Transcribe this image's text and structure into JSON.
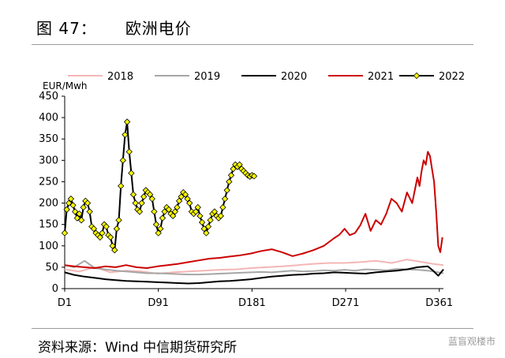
{
  "header": {
    "figure_number": "图 47：",
    "title": "欧洲电价"
  },
  "footer": {
    "source": "资料来源：Wind  中信期货研究所",
    "watermark": "蓝盲观楼市"
  },
  "chart_data": {
    "type": "line",
    "title": "欧洲电价",
    "ylabel": "EUR/Mwh",
    "xlabel": "",
    "ylim": [
      0,
      450
    ],
    "yticks": [
      0,
      50,
      100,
      150,
      200,
      250,
      300,
      350,
      400,
      450
    ],
    "xlim": [
      1,
      365
    ],
    "xticks": [
      {
        "value": 1,
        "label": "D1"
      },
      {
        "value": 91,
        "label": "D91"
      },
      {
        "value": 181,
        "label": "D181"
      },
      {
        "value": 271,
        "label": "D271"
      },
      {
        "value": 361,
        "label": "D361"
      }
    ],
    "legend_position": "top",
    "series": [
      {
        "name": "2018",
        "color": "#f4b6b6",
        "markers": false,
        "x": [
          1,
          15,
          30,
          45,
          60,
          75,
          90,
          105,
          120,
          135,
          150,
          165,
          180,
          195,
          210,
          225,
          240,
          255,
          270,
          285,
          300,
          315,
          330,
          345,
          355,
          365
        ],
        "y": [
          45,
          40,
          50,
          38,
          42,
          40,
          35,
          38,
          40,
          42,
          44,
          45,
          48,
          50,
          52,
          55,
          58,
          60,
          60,
          62,
          65,
          60,
          68,
          62,
          58,
          55
        ]
      },
      {
        "name": "2019",
        "color": "#a6a6a6",
        "markers": false,
        "x": [
          1,
          10,
          20,
          30,
          40,
          50,
          60,
          70,
          80,
          90,
          100,
          110,
          120,
          130,
          140,
          150,
          160,
          170,
          180,
          190,
          200,
          210,
          220,
          230,
          240,
          250,
          260,
          270,
          280,
          290,
          300,
          310,
          320,
          330,
          340,
          350,
          360,
          365
        ],
        "y": [
          55,
          50,
          65,
          48,
          45,
          42,
          40,
          38,
          36,
          36,
          35,
          34,
          33,
          33,
          34,
          35,
          36,
          37,
          38,
          39,
          38,
          40,
          42,
          40,
          41,
          43,
          42,
          44,
          42,
          45,
          44,
          43,
          46,
          45,
          44,
          42,
          38,
          36
        ]
      },
      {
        "name": "2020",
        "color": "#000000",
        "markers": false,
        "x": [
          1,
          10,
          20,
          30,
          40,
          50,
          60,
          70,
          80,
          90,
          100,
          110,
          120,
          130,
          140,
          150,
          160,
          170,
          180,
          190,
          200,
          210,
          220,
          230,
          240,
          250,
          260,
          270,
          280,
          290,
          300,
          310,
          320,
          330,
          340,
          350,
          355,
          360,
          365
        ],
        "y": [
          38,
          32,
          28,
          25,
          22,
          20,
          18,
          17,
          16,
          15,
          14,
          13,
          12,
          13,
          15,
          17,
          18,
          20,
          22,
          25,
          28,
          30,
          32,
          33,
          35,
          36,
          38,
          37,
          36,
          35,
          38,
          40,
          42,
          45,
          50,
          52,
          42,
          30,
          45
        ]
      },
      {
        "name": "2021",
        "color": "#cc0000",
        "markers": false,
        "x": [
          1,
          10,
          20,
          30,
          40,
          50,
          60,
          70,
          80,
          90,
          100,
          110,
          120,
          130,
          140,
          150,
          160,
          170,
          180,
          190,
          200,
          210,
          220,
          230,
          240,
          250,
          260,
          265,
          270,
          275,
          280,
          285,
          290,
          295,
          300,
          305,
          310,
          315,
          320,
          325,
          330,
          335,
          340,
          342,
          344,
          346,
          348,
          350,
          352,
          354,
          356,
          358,
          360,
          362,
          364
        ],
        "y": [
          55,
          52,
          50,
          48,
          52,
          50,
          55,
          50,
          48,
          52,
          55,
          58,
          62,
          66,
          70,
          72,
          75,
          78,
          82,
          88,
          92,
          85,
          76,
          82,
          90,
          100,
          118,
          126,
          140,
          125,
          130,
          148,
          175,
          135,
          160,
          150,
          175,
          210,
          200,
          180,
          225,
          200,
          260,
          240,
          275,
          300,
          290,
          320,
          310,
          280,
          250,
          180,
          100,
          85,
          120
        ]
      },
      {
        "name": "2022",
        "color": "#000000",
        "marker_color": "#ffff00",
        "markers": true,
        "x": [
          1,
          3,
          5,
          7,
          9,
          11,
          13,
          15,
          17,
          19,
          21,
          23,
          25,
          27,
          29,
          31,
          33,
          35,
          37,
          39,
          41,
          43,
          45,
          47,
          49,
          51,
          53,
          55,
          57,
          59,
          61,
          63,
          65,
          67,
          69,
          71,
          73,
          75,
          77,
          79,
          81,
          83,
          85,
          87,
          89,
          91,
          93,
          95,
          97,
          99,
          101,
          103,
          105,
          107,
          109,
          111,
          113,
          115,
          117,
          119,
          121,
          123,
          125,
          127,
          129,
          131,
          133,
          135,
          137,
          139,
          141,
          143,
          145,
          147,
          149,
          151,
          153,
          155,
          157,
          159,
          161,
          163,
          165,
          167,
          169,
          171,
          173,
          175,
          177,
          179,
          181,
          183
        ],
        "y": [
          130,
          185,
          200,
          210,
          195,
          180,
          165,
          175,
          160,
          190,
          205,
          200,
          180,
          145,
          140,
          130,
          125,
          120,
          130,
          150,
          145,
          125,
          120,
          100,
          90,
          140,
          160,
          240,
          300,
          360,
          390,
          320,
          270,
          220,
          200,
          185,
          180,
          200,
          215,
          230,
          225,
          220,
          210,
          180,
          150,
          130,
          140,
          165,
          180,
          190,
          185,
          175,
          170,
          180,
          190,
          205,
          215,
          225,
          220,
          210,
          200,
          180,
          175,
          180,
          190,
          170,
          155,
          140,
          130,
          145,
          160,
          175,
          180,
          170,
          165,
          170,
          190,
          210,
          230,
          250,
          265,
          280,
          290,
          285,
          290,
          280,
          275,
          270,
          265,
          262,
          265,
          263
        ]
      }
    ]
  }
}
